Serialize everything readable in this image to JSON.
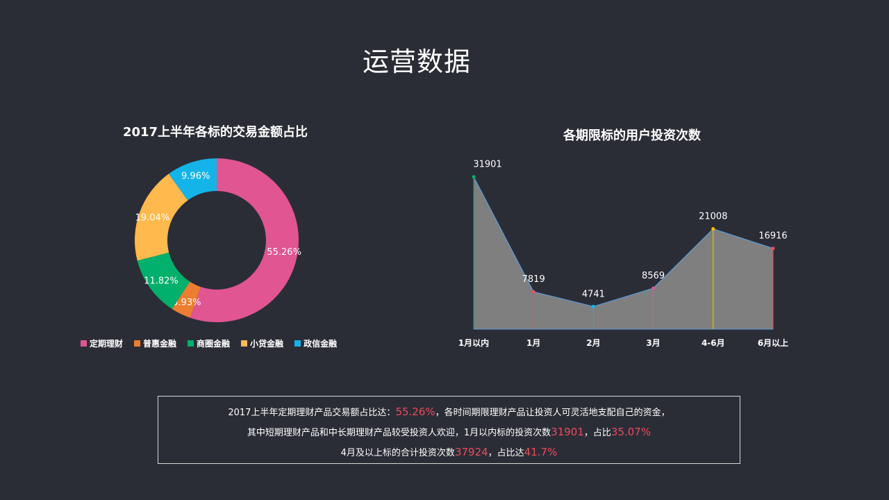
{
  "page": {
    "title": "运营数据"
  },
  "colors": {
    "background": "#2b2d36",
    "highlight": "#ee4a5d",
    "area_fill": "#7f7f7f",
    "area_line": "#5b9bd5"
  },
  "donut": {
    "title": "2017上半年各标的交易金额占比",
    "legend": [
      {
        "label": "定期理财",
        "color": "#e05592"
      },
      {
        "label": "普惠金融",
        "color": "#ed7d31"
      },
      {
        "label": "商圈金融",
        "color": "#00b06b"
      },
      {
        "label": "小贷金融",
        "color": "#ffb94c"
      },
      {
        "label": "政信金融",
        "color": "#14b4e8"
      }
    ]
  },
  "area": {
    "title": "各期限标的用户投资次数",
    "line_colors": [
      "#00b06b",
      "#f04e5b",
      "#14b4e8",
      "#e05592",
      "#ffc000",
      "#f04e5b"
    ]
  },
  "chart_data": [
    {
      "type": "pie",
      "title": "2017上半年各标的交易金额占比",
      "categories": [
        "定期理财",
        "普惠金融",
        "商圈金融",
        "小贷金融",
        "政信金融"
      ],
      "values": [
        55.26,
        3.93,
        11.82,
        19.04,
        9.96
      ],
      "labels": [
        "55.26%",
        "3.93%",
        "11.82%",
        "19.04%",
        "9.96%"
      ],
      "donut": true,
      "legend_position": "bottom"
    },
    {
      "type": "area",
      "title": "各期限标的用户投资次数",
      "categories": [
        "1月以内",
        "1月",
        "2月",
        "3月",
        "4-6月",
        "6月以上"
      ],
      "values": [
        31901,
        7819,
        4741,
        8569,
        21008,
        16916
      ],
      "labels": [
        "31901",
        "7819",
        "4741",
        "8569",
        "21008",
        "16916"
      ],
      "ylim": [
        0,
        32000
      ],
      "grid": false
    }
  ],
  "summary": {
    "line1_pre": "2017上半年定期理财产品交易额占比达：",
    "line1_hl": "55.26%",
    "line1_post": "，各时间期限理财产品让投资人可灵活地支配自己的资金，",
    "line2_pre": "其中短期理财产品和中长期理财产品较受投资人欢迎，1月以内标的投资次数",
    "line2_hl1": "31901",
    "line2_mid": "，占比",
    "line2_hl2": "35.07%",
    "line3_pre": "4月及以上标的合计投资次数",
    "line3_hl1": "37924",
    "line3_mid": "，占比达",
    "line3_hl2": "41.7%"
  }
}
